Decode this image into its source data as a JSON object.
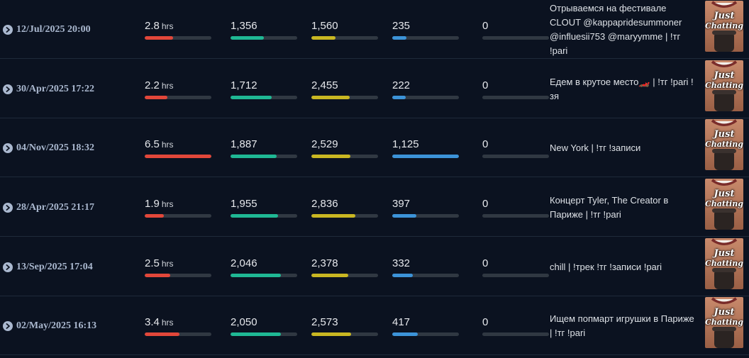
{
  "colors": {
    "duration": "#e2473a",
    "avg_viewers": "#1fb894",
    "peak_viewers": "#c9b722",
    "followers": "#3c93d8",
    "extra": "#3a4250"
  },
  "category_thumb": {
    "line1": "Just",
    "line2": "Chatting."
  },
  "rows": [
    {
      "date": "12/Jul/2025 20:00",
      "duration": "2.8",
      "duration_unit": "hrs",
      "duration_level": 0.43,
      "avg_viewers": "1,356",
      "avg_level": 0.5,
      "peak_viewers": "1,560",
      "peak_level": 0.36,
      "followers": "235",
      "followers_level": 0.21,
      "extra": "0",
      "extra_level": 0,
      "title": "Отрываемся на фестивале CLOUT @kappapridesummoner @influesii753 @maryymme | !тг !pari"
    },
    {
      "date": "30/Apr/2025 17:22",
      "duration": "2.2",
      "duration_unit": "hrs",
      "duration_level": 0.34,
      "avg_viewers": "1,712",
      "avg_level": 0.62,
      "peak_viewers": "2,455",
      "peak_level": 0.57,
      "followers": "222",
      "followers_level": 0.2,
      "extra": "0",
      "extra_level": 0,
      "title": "Едем в крутое место🏎️ | !тг !pari !зя"
    },
    {
      "date": "04/Nov/2025 18:32",
      "duration": "6.5",
      "duration_unit": "hrs",
      "duration_level": 1.0,
      "avg_viewers": "1,887",
      "avg_level": 0.69,
      "peak_viewers": "2,529",
      "peak_level": 0.59,
      "followers": "1,125",
      "followers_level": 1.0,
      "extra": "0",
      "extra_level": 0,
      "title": "New York | !тг !записи"
    },
    {
      "date": "28/Apr/2025 21:17",
      "duration": "1.9",
      "duration_unit": "hrs",
      "duration_level": 0.29,
      "avg_viewers": "1,955",
      "avg_level": 0.71,
      "peak_viewers": "2,836",
      "peak_level": 0.66,
      "followers": "397",
      "followers_level": 0.36,
      "extra": "0",
      "extra_level": 0,
      "title": "Концерт Tyler, The Creator в Париже | !тг !pari"
    },
    {
      "date": "13/Sep/2025 17:04",
      "duration": "2.5",
      "duration_unit": "hrs",
      "duration_level": 0.38,
      "avg_viewers": "2,046",
      "avg_level": 0.75,
      "peak_viewers": "2,378",
      "peak_level": 0.55,
      "followers": "332",
      "followers_level": 0.31,
      "extra": "0",
      "extra_level": 0,
      "title": "chill | !трек !тг !записи !pari"
    },
    {
      "date": "02/May/2025 16:13",
      "duration": "3.4",
      "duration_unit": "hrs",
      "duration_level": 0.52,
      "avg_viewers": "2,050",
      "avg_level": 0.75,
      "peak_viewers": "2,573",
      "peak_level": 0.6,
      "followers": "417",
      "followers_level": 0.38,
      "extra": "0",
      "extra_level": 0,
      "title": "Ищем попмарт игрушки в Париже | !тг !pari"
    }
  ]
}
